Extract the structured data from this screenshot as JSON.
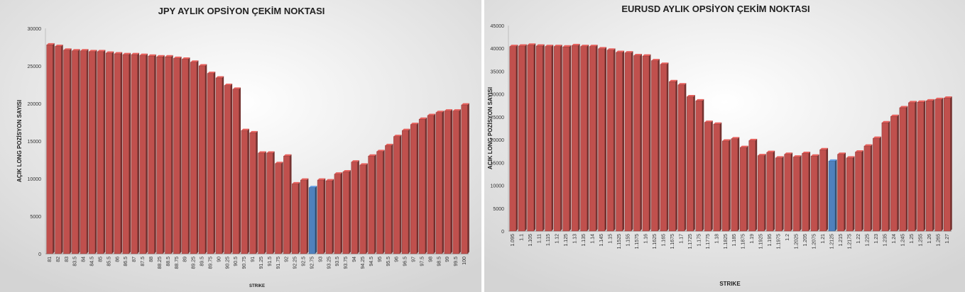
{
  "chart_data": [
    {
      "type": "bar",
      "title": "JPY AYLIK OPSİYON ÇEKİM NOKTASI",
      "xlabel": "STRIKE",
      "ylabel": "AÇIK LONG POZİSYON SAYISI",
      "ylim": [
        0,
        30000
      ],
      "ytick_step": 5000,
      "grid": false,
      "bar_color": "#c0504d",
      "highlight_color": "#4f81bd",
      "highlight_category": "92.75",
      "categories": [
        "81",
        "82",
        "83",
        "83.5",
        "84",
        "84.5",
        "85",
        "85.5",
        "86",
        "86.5",
        "87",
        "87.5",
        "88",
        "88.25",
        "88.5",
        "88.75",
        "89",
        "89.25",
        "89.5",
        "89.75",
        "90",
        "90.25",
        "90.5",
        "90.75",
        "91",
        "91.25",
        "91.5",
        "91.75",
        "92",
        "92.25",
        "92.5",
        "92.75",
        "93",
        "93.25",
        "93.5",
        "93.75",
        "94",
        "94.25",
        "94.5",
        "95",
        "95.5",
        "96",
        "96.5",
        "97",
        "97.5",
        "98",
        "98.5",
        "99",
        "99.5",
        "100"
      ],
      "values": [
        27800,
        27600,
        27100,
        27000,
        27000,
        26900,
        26900,
        26700,
        26600,
        26500,
        26500,
        26400,
        26300,
        26200,
        26200,
        26000,
        25900,
        25500,
        25000,
        24000,
        23400,
        22400,
        21900,
        16400,
        16100,
        13400,
        13400,
        12000,
        13000,
        9300,
        9800,
        8800,
        9800,
        9700,
        10600,
        10900,
        12200,
        11800,
        13000,
        13600,
        14400,
        15600,
        16400,
        17200,
        17900,
        18400,
        18800,
        19000,
        19000,
        19800
      ]
    },
    {
      "type": "bar",
      "title": "EURUSD AYLIK OPSİYON ÇEKİM NOKTASI",
      "xlabel": "STRIKE",
      "ylabel": "AÇIK LONG POZİSYON SAYISI",
      "ylim": [
        0,
        45000
      ],
      "ytick_step": 5000,
      "grid": false,
      "bar_color": "#c0504d",
      "highlight_color": "#4f81bd",
      "highlight_category": "1.2125",
      "categories": [
        "1.095",
        "1.1",
        "1.105",
        "1.11",
        "1.115",
        "1.12",
        "1.125",
        "1.13",
        "1.135",
        "1.14",
        "1.145",
        "1.15",
        "1.1525",
        "1.155",
        "1.1575",
        "1.16",
        "1.1625",
        "1.165",
        "1.1675",
        "1.17",
        "1.1725",
        "1.175",
        "1.1775",
        "1.18",
        "1.1825",
        "1.185",
        "1.1875",
        "1.19",
        "1.1925",
        "1.195",
        "1.1975",
        "1.2",
        "1.2025",
        "1.205",
        "1.2075",
        "1.21",
        "1.2125",
        "1.215",
        "1.2175",
        "1.22",
        "1.225",
        "1.23",
        "1.235",
        "1.24",
        "1.245",
        "1.25",
        "1.255",
        "1.26",
        "1.265",
        "1.27"
      ],
      "values": [
        40400,
        40500,
        40700,
        40500,
        40400,
        40400,
        40300,
        40600,
        40400,
        40400,
        39900,
        39600,
        39100,
        39000,
        38400,
        38300,
        37300,
        36500,
        32700,
        32000,
        29400,
        28500,
        23800,
        23400,
        19700,
        20200,
        18300,
        19800,
        16500,
        17200,
        16000,
        16800,
        16200,
        17000,
        16400,
        17800,
        15300,
        16800,
        16000,
        17300,
        18600,
        20300,
        23700,
        25100,
        27000,
        28100,
        28200,
        28500,
        28800,
        29100
      ]
    }
  ]
}
